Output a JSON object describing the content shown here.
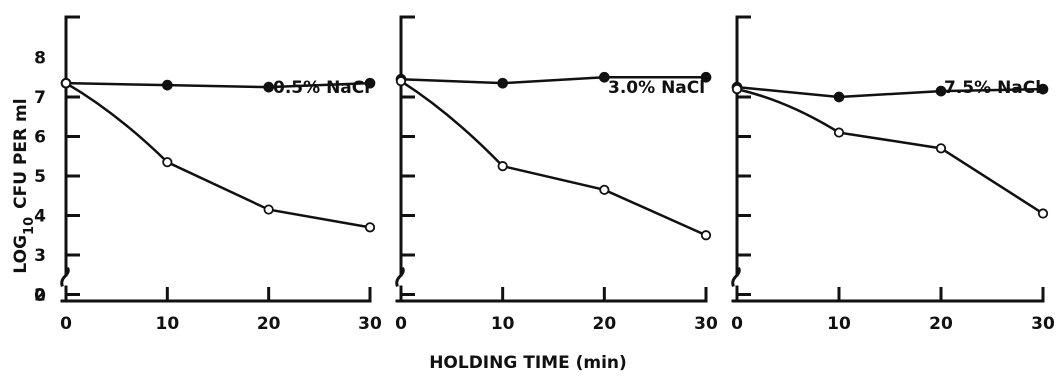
{
  "chart_data": {
    "type": "line",
    "ylabel": "LOG10 CFU PER ml",
    "ylabel_main": "LOG",
    "ylabel_sub": "10",
    "ylabel_rest": "CFU PER ml",
    "xlabel": "HOLDING TIME (min)",
    "yticks": [
      "0",
      "2",
      "3",
      "4",
      "5",
      "6",
      "7",
      "8"
    ],
    "xticks": [
      "0",
      "10",
      "20",
      "30"
    ],
    "ylim": [
      0,
      8
    ],
    "xlim": [
      0,
      30
    ],
    "panels": [
      {
        "annotation": "0.5% NaCl",
        "series": [
          {
            "marker": "filled",
            "x": [
              0,
              10,
              20,
              30
            ],
            "y": [
              7.35,
              7.3,
              7.25,
              7.35
            ]
          },
          {
            "marker": "open",
            "x": [
              0,
              10,
              20,
              30
            ],
            "y": [
              7.35,
              5.35,
              4.15,
              3.7
            ]
          }
        ]
      },
      {
        "annotation": "3.0% NaCl",
        "series": [
          {
            "marker": "filled",
            "x": [
              0,
              10,
              20,
              30
            ],
            "y": [
              7.45,
              7.35,
              7.5,
              7.5
            ]
          },
          {
            "marker": "open",
            "x": [
              0,
              10,
              20,
              30
            ],
            "y": [
              7.4,
              5.25,
              4.65,
              3.5
            ]
          }
        ]
      },
      {
        "annotation": "7.5% NaCl",
        "series": [
          {
            "marker": "filled",
            "x": [
              0,
              10,
              20,
              30
            ],
            "y": [
              7.25,
              7.0,
              7.15,
              7.2
            ]
          },
          {
            "marker": "open",
            "x": [
              0,
              10,
              20,
              30
            ],
            "y": [
              7.2,
              6.1,
              5.7,
              4.05
            ]
          }
        ]
      }
    ]
  }
}
